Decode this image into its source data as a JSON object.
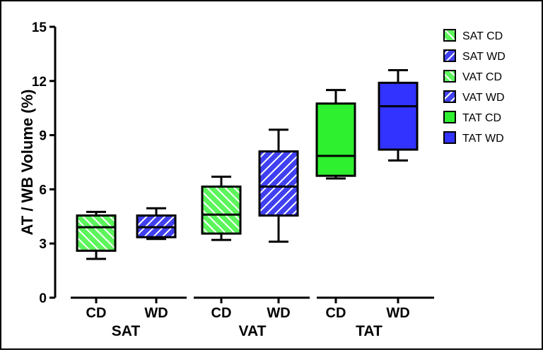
{
  "chart_data": {
    "type": "box",
    "title": "",
    "xlabel": "",
    "ylabel": "AT / WB Volume (%)",
    "ylim": [
      0,
      15
    ],
    "yticks": [
      0,
      3,
      6,
      9,
      12,
      15
    ],
    "grid": false,
    "legend_position": "right",
    "groups": [
      {
        "name": "SAT",
        "categories": [
          "CD",
          "WD"
        ]
      },
      {
        "name": "VAT",
        "categories": [
          "CD",
          "WD"
        ]
      },
      {
        "name": "TAT",
        "categories": [
          "CD",
          "WD"
        ]
      }
    ],
    "series": [
      {
        "name": "SAT CD",
        "group": "SAT",
        "category": "CD",
        "color": "#5cf55c",
        "pattern": "hatch-right",
        "min": 2.15,
        "q1": 2.6,
        "median": 3.9,
        "q3": 4.55,
        "max": 4.75
      },
      {
        "name": "SAT WD",
        "group": "SAT",
        "category": "WD",
        "color": "#4040f0",
        "pattern": "hatch-left",
        "min": 3.25,
        "q1": 3.35,
        "median": 3.9,
        "q3": 4.55,
        "max": 4.95
      },
      {
        "name": "VAT CD",
        "group": "VAT",
        "category": "CD",
        "color": "#5cf55c",
        "pattern": "hatch-right",
        "min": 3.2,
        "q1": 3.55,
        "median": 4.6,
        "q3": 6.15,
        "max": 6.7
      },
      {
        "name": "VAT WD",
        "group": "VAT",
        "category": "WD",
        "color": "#4040f0",
        "pattern": "hatch-left",
        "min": 3.1,
        "q1": 4.55,
        "median": 6.15,
        "q3": 8.1,
        "max": 9.3
      },
      {
        "name": "TAT CD",
        "group": "TAT",
        "category": "CD",
        "color": "#2ef02e",
        "pattern": "solid",
        "min": 6.6,
        "q1": 6.75,
        "median": 7.85,
        "q3": 10.75,
        "max": 11.5
      },
      {
        "name": "TAT WD",
        "group": "TAT",
        "category": "WD",
        "color": "#3333ff",
        "pattern": "solid",
        "min": 7.6,
        "q1": 8.2,
        "median": 10.6,
        "q3": 11.9,
        "max": 12.6
      }
    ]
  }
}
